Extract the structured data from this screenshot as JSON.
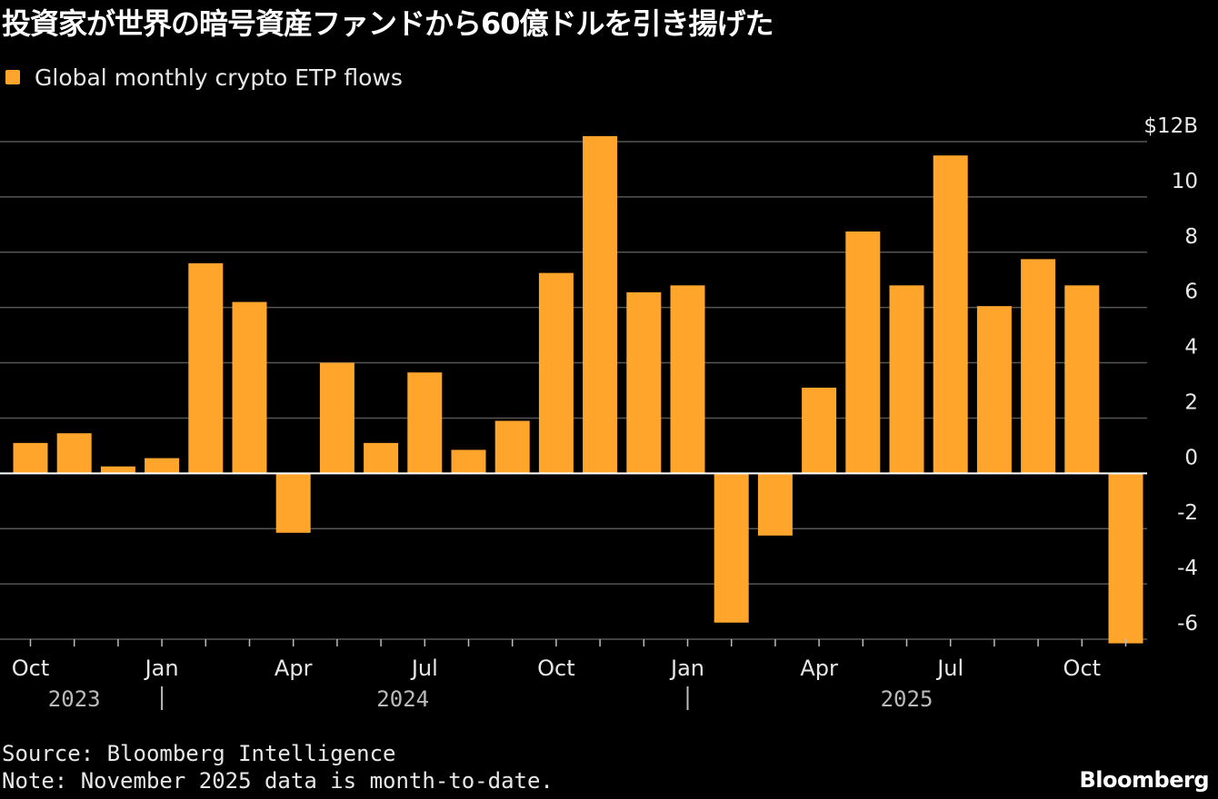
{
  "title": "投資家が世界の暗号資産ファンドから60億ドルを引き揚げた",
  "source": "Source: Bloomberg Intelligence",
  "note": "Note: November 2025 data is month-to-date.",
  "brand": "Bloomberg",
  "colors": {
    "bar": "#ffa52c",
    "grid": "#555555",
    "zero": "#ffffff",
    "background": "#000000"
  },
  "chart_data": {
    "type": "bar",
    "categories": [
      "2023-10",
      "2023-11",
      "2023-12",
      "2024-01",
      "2024-02",
      "2024-03",
      "2024-04",
      "2024-05",
      "2024-06",
      "2024-07",
      "2024-08",
      "2024-09",
      "2024-10",
      "2024-11",
      "2024-12",
      "2025-01",
      "2025-02",
      "2025-03",
      "2025-04",
      "2025-05",
      "2025-06",
      "2025-07",
      "2025-08",
      "2025-09",
      "2025-10",
      "2025-11"
    ],
    "series": [
      {
        "name": "Global monthly crypto ETP flows",
        "values": [
          1.1,
          1.45,
          0.25,
          0.55,
          7.6,
          6.2,
          -2.15,
          4.0,
          1.1,
          3.65,
          0.85,
          1.9,
          7.25,
          12.2,
          6.55,
          6.8,
          -5.4,
          -2.25,
          3.1,
          8.75,
          6.8,
          11.5,
          6.05,
          7.75,
          6.8,
          -6.15
        ]
      }
    ],
    "ylim": [
      -6,
      12
    ],
    "yticks": [
      12,
      10,
      8,
      6,
      4,
      2,
      0,
      -2,
      -4,
      -6
    ],
    "ytick_labels": [
      "$12B",
      "10",
      "8",
      "6",
      "4",
      "2",
      "0",
      "-2",
      "-4",
      "-6"
    ],
    "xticks": [
      {
        "index": 0,
        "label": "Oct"
      },
      {
        "index": 3,
        "label": "Jan"
      },
      {
        "index": 6,
        "label": "Apr"
      },
      {
        "index": 9,
        "label": "Jul"
      },
      {
        "index": 12,
        "label": "Oct"
      },
      {
        "index": 15,
        "label": "Jan"
      },
      {
        "index": 18,
        "label": "Apr"
      },
      {
        "index": 21,
        "label": "Jul"
      },
      {
        "index": 24,
        "label": "Oct"
      }
    ],
    "years": [
      {
        "label": "2023",
        "from": 0,
        "to": 2
      },
      {
        "label": "2024",
        "from": 3,
        "to": 14
      },
      {
        "label": "2025",
        "from": 15,
        "to": 25
      }
    ],
    "xlabel": "",
    "ylabel": "",
    "grid": true,
    "legend": "top-left"
  }
}
